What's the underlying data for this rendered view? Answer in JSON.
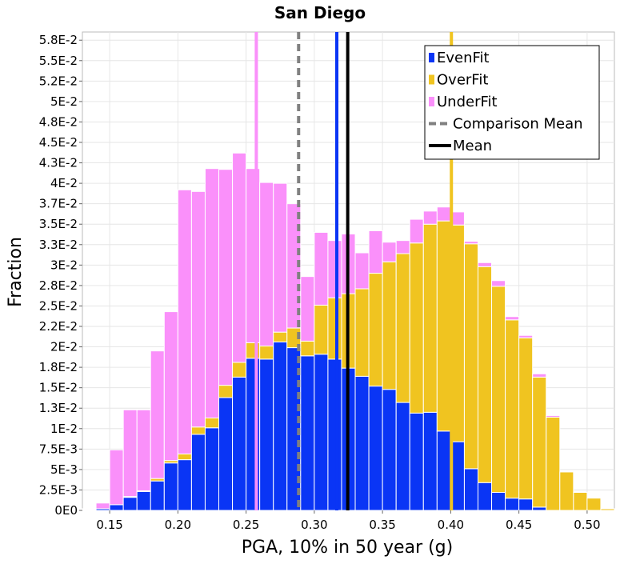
{
  "chart_data": {
    "type": "bar",
    "stacked": true,
    "title": "San Diego",
    "xlabel": "PGA, 10% in 50 year (g)",
    "ylabel": "Fraction",
    "xlim": [
      0.13,
      0.52
    ],
    "ylim": [
      0,
      0.0585
    ],
    "bin_width": 0.01,
    "grid": true,
    "legend_position": "top-right",
    "x_ticks": [
      {
        "value": 0.15,
        "label": "0.15"
      },
      {
        "value": 0.2,
        "label": "0.20"
      },
      {
        "value": 0.25,
        "label": "0.25"
      },
      {
        "value": 0.3,
        "label": "0.30"
      },
      {
        "value": 0.35,
        "label": "0.35"
      },
      {
        "value": 0.4,
        "label": "0.40"
      },
      {
        "value": 0.45,
        "label": "0.45"
      },
      {
        "value": 0.5,
        "label": "0.50"
      }
    ],
    "y_ticks": [
      {
        "value": 0,
        "label": "0E0"
      },
      {
        "value": 0.0025,
        "label": "2.5E-3"
      },
      {
        "value": 0.005,
        "label": "5E-3"
      },
      {
        "value": 0.0075,
        "label": "7.5E-3"
      },
      {
        "value": 0.01,
        "label": "1E-2"
      },
      {
        "value": 0.0125,
        "label": "1.3E-2"
      },
      {
        "value": 0.015,
        "label": "1.5E-2"
      },
      {
        "value": 0.0175,
        "label": "1.8E-2"
      },
      {
        "value": 0.02,
        "label": "2E-2"
      },
      {
        "value": 0.0225,
        "label": "2.2E-2"
      },
      {
        "value": 0.025,
        "label": "2.5E-2"
      },
      {
        "value": 0.0275,
        "label": "2.8E-2"
      },
      {
        "value": 0.03,
        "label": "3E-2"
      },
      {
        "value": 0.0325,
        "label": "3.3E-2"
      },
      {
        "value": 0.035,
        "label": "3.5E-2"
      },
      {
        "value": 0.0375,
        "label": "3.7E-2"
      },
      {
        "value": 0.04,
        "label": "4E-2"
      },
      {
        "value": 0.0425,
        "label": "4.3E-2"
      },
      {
        "value": 0.045,
        "label": "4.5E-2"
      },
      {
        "value": 0.0475,
        "label": "4.8E-2"
      },
      {
        "value": 0.05,
        "label": "5E-2"
      },
      {
        "value": 0.0525,
        "label": "5.2E-2"
      },
      {
        "value": 0.055,
        "label": "5.5E-2"
      },
      {
        "value": 0.0575,
        "label": "5.8E-2"
      }
    ],
    "x": [
      0.135,
      0.145,
      0.155,
      0.165,
      0.175,
      0.185,
      0.195,
      0.205,
      0.215,
      0.225,
      0.235,
      0.245,
      0.255,
      0.265,
      0.275,
      0.285,
      0.295,
      0.305,
      0.315,
      0.325,
      0.335,
      0.345,
      0.355,
      0.365,
      0.375,
      0.385,
      0.395,
      0.405,
      0.415,
      0.425,
      0.435,
      0.445,
      0.455,
      0.465,
      0.475,
      0.485,
      0.495,
      0.505,
      0.515
    ],
    "series": [
      {
        "name": "EvenFit",
        "color": "#0a35f5",
        "values": [
          0.0001,
          0.0002,
          0.0007,
          0.0016,
          0.0023,
          0.0036,
          0.0058,
          0.0062,
          0.0093,
          0.0101,
          0.0138,
          0.0163,
          0.0186,
          0.0185,
          0.0206,
          0.0199,
          0.0189,
          0.0191,
          0.0185,
          0.0174,
          0.0164,
          0.0152,
          0.0148,
          0.0132,
          0.0119,
          0.012,
          0.0097,
          0.0084,
          0.0051,
          0.0034,
          0.0022,
          0.0015,
          0.0014,
          0.0004,
          0,
          0,
          0,
          0,
          0
        ]
      },
      {
        "name": "OverFit",
        "color": "#f0c420",
        "values": [
          0,
          0,
          0,
          0.0001,
          0.0001,
          0.0003,
          0.0003,
          0.0007,
          0.0009,
          0.0012,
          0.0015,
          0.0018,
          0.0019,
          0.0016,
          0.0012,
          0.0024,
          0.0018,
          0.006,
          0.0075,
          0.0091,
          0.0107,
          0.0138,
          0.0156,
          0.0182,
          0.0208,
          0.023,
          0.0257,
          0.0265,
          0.0275,
          0.0264,
          0.0252,
          0.0218,
          0.0197,
          0.0159,
          0.0114,
          0.0047,
          0.0022,
          0.0015,
          0.0002
        ]
      },
      {
        "name": "UnderFit",
        "color": "#fa90fa",
        "values": [
          0.0001,
          0.0007,
          0.0067,
          0.0106,
          0.0099,
          0.0156,
          0.0182,
          0.0323,
          0.0288,
          0.0305,
          0.0264,
          0.0256,
          0.0213,
          0.02,
          0.0182,
          0.0152,
          0.0079,
          0.0089,
          0.007,
          0.0073,
          0.0044,
          0.0052,
          0.0024,
          0.0016,
          0.0029,
          0.0016,
          0.0017,
          0.0016,
          0.0003,
          0.0005,
          0.0007,
          0.0004,
          0.0003,
          0.0004,
          0.0002,
          0,
          0,
          0,
          0
        ]
      }
    ],
    "mean": {
      "name": "Mean",
      "value": 0.3245,
      "color": "#000000",
      "style": "solid"
    },
    "comparison_mean": {
      "name": "Comparison Mean",
      "value": 0.2885,
      "color": "#808080",
      "style": "dashed"
    },
    "series_means": [
      {
        "series": "UnderFit",
        "value": 0.2575,
        "color": "#fa90fa"
      },
      {
        "series": "EvenFit",
        "value": 0.3165,
        "color": "#0a35f5"
      },
      {
        "series": "OverFit",
        "value": 0.4005,
        "color": "#f0c420"
      }
    ],
    "legend": [
      {
        "label": "EvenFit",
        "kind": "swatch",
        "color": "#0a35f5"
      },
      {
        "label": "OverFit",
        "kind": "swatch",
        "color": "#f0c420"
      },
      {
        "label": "UnderFit",
        "kind": "swatch",
        "color": "#fa90fa"
      },
      {
        "label": "Comparison Mean",
        "kind": "dashed-line",
        "color": "#808080"
      },
      {
        "label": "Mean",
        "kind": "solid-line",
        "color": "#000000"
      }
    ]
  }
}
